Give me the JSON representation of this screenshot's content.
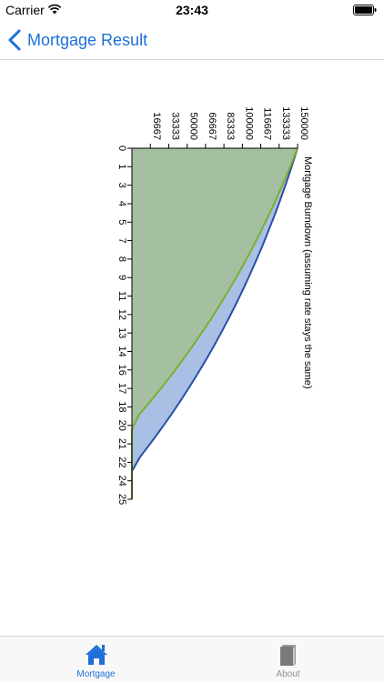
{
  "status_bar": {
    "carrier": "Carrier",
    "time": "23:43"
  },
  "nav": {
    "back_label": "Mortgage Result"
  },
  "chart_data": {
    "type": "area",
    "title": "Mortgage Burndown (assuming rate stays the same)",
    "x": [
      0,
      1,
      2,
      3,
      4,
      5,
      6,
      7,
      8,
      9,
      10,
      11,
      12,
      13,
      14,
      15,
      16,
      17,
      18,
      19,
      20,
      21,
      22,
      23,
      24,
      25
    ],
    "x_tick_labels": [
      "0",
      "1",
      "3",
      "4",
      "5",
      "7",
      "8",
      "9",
      "11",
      "12",
      "13",
      "14",
      "16",
      "17",
      "18",
      "20",
      "21",
      "22",
      "24",
      "25"
    ],
    "y_tick_labels": [
      "16667",
      "33333",
      "50000",
      "66667",
      "83333",
      "100000",
      "116667",
      "133333",
      "150000"
    ],
    "ylim": [
      0,
      150000
    ],
    "xlim": [
      0,
      25
    ],
    "series": [
      {
        "color": "#2a4fa8",
        "fill": "#a9bfe3",
        "values": [
          150000,
          145970,
          141770,
          137390,
          132820,
          128050,
          123080,
          117900,
          112490,
          106850,
          100970,
          94840,
          88440,
          81770,
          74810,
          67560,
          59990,
          52100,
          43870,
          35280,
          26330,
          16990,
          7250,
          0,
          0,
          0
        ]
      },
      {
        "color": "#7ab02e",
        "fill": "#a5c0a0",
        "values": [
          150000,
          144950,
          139680,
          134190,
          128460,
          122490,
          116260,
          109760,
          102980,
          95910,
          88540,
          80850,
          72830,
          64470,
          55750,
          46660,
          37180,
          27290,
          16970,
          6210,
          0,
          0,
          0,
          0,
          0,
          0
        ]
      }
    ],
    "grid": false,
    "legend": "none"
  },
  "tabs": [
    {
      "label": "Mortgage",
      "icon": "house-icon",
      "active": true
    },
    {
      "label": "About",
      "icon": "book-icon",
      "active": false
    }
  ],
  "colors": {
    "accent": "#1e6fd9"
  }
}
